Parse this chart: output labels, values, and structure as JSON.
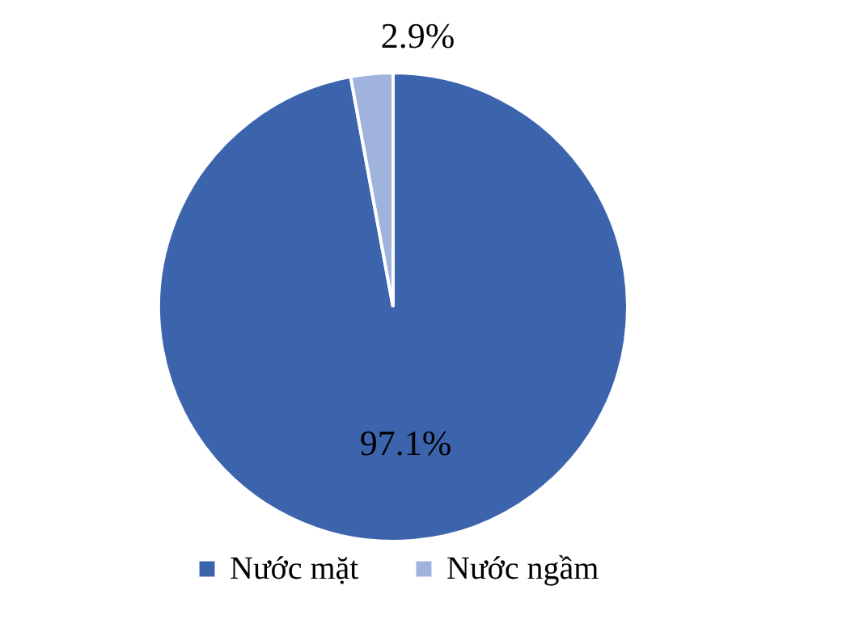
{
  "chart_data": {
    "type": "pie",
    "categories": [
      "Nước mặt",
      "Nước ngầm"
    ],
    "values": [
      97.1,
      2.9
    ],
    "colors": [
      "#3c64ad",
      "#9fb3dc"
    ],
    "value_labels": [
      "97.1%",
      "2.9%"
    ],
    "legend": "bottom"
  }
}
